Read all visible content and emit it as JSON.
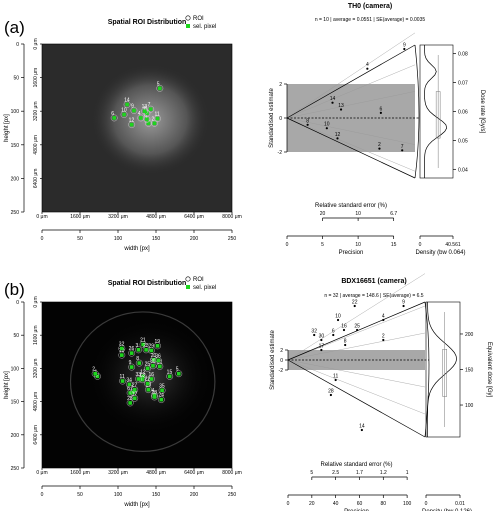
{
  "figure": {
    "panels": [
      {
        "tag": "(a)",
        "map": {
          "title": "Spatial ROI Distribution",
          "legend": [
            "ROI",
            "sel. pixel"
          ],
          "xlabel": "width [px]",
          "ylabel": "height [px]",
          "x_ticks": [
            0,
            50,
            100,
            150,
            200,
            250
          ],
          "y_ticks": [
            0,
            50,
            100,
            150,
            200,
            250
          ],
          "um_x_ticks": [
            "0 μm",
            "1600 μm",
            "3200 μm",
            "4800 μm",
            "6400 μm",
            "8000 μm"
          ],
          "um_y_ticks": [
            "0 μm",
            "1600 μm",
            "3200 μm",
            "4800 μm",
            "6400 μm"
          ],
          "rois": [
            {
              "label": "1",
              "x": 140,
              "y": 118
            },
            {
              "label": "2",
              "x": 148,
              "y": 118
            },
            {
              "label": "3",
              "x": 138,
              "y": 112
            },
            {
              "label": "4",
              "x": 130,
              "y": 110
            },
            {
              "label": "5",
              "x": 155,
              "y": 66
            },
            {
              "label": "6",
              "x": 95,
              "y": 110
            },
            {
              "label": "7",
              "x": 143,
              "y": 97
            },
            {
              "label": "8",
              "x": 138,
              "y": 103
            },
            {
              "label": "9",
              "x": 121,
              "y": 99
            },
            {
              "label": "10",
              "x": 108,
              "y": 105
            },
            {
              "label": "11",
              "x": 152,
              "y": 111
            },
            {
              "label": "12",
              "x": 118,
              "y": 120
            },
            {
              "label": "13",
              "x": 135,
              "y": 100
            },
            {
              "label": "14",
              "x": 112,
              "y": 90
            }
          ]
        },
        "radial": {
          "title": "TH0 (camera)",
          "stats": "n = 10 | average = 0.0551 | SE(average) = 0.0035",
          "ylabel": "Standardised estimate",
          "y_ticks": [
            -2,
            0,
            2
          ],
          "precision_label": "Precision",
          "precision_ticks": [
            0,
            5,
            10,
            15
          ],
          "rse_label": "Relative standard error (%)",
          "rse_ticks": [
            "20",
            "10",
            "6.7"
          ],
          "rse_positions": [
            5,
            10,
            15
          ],
          "dose_label": "Dose rate [Gy/s]",
          "dose_ticks": [
            0.04,
            0.05,
            0.06,
            0.07,
            0.08
          ],
          "dose_range": [
            0.037,
            0.083
          ],
          "density_label": "Density (bw 0.064)",
          "density_ticks": [
            "0",
            "40.561"
          ],
          "precision_max": 18,
          "points": [
            {
              "label": "9",
              "p": 16.5,
              "z": 6.8
            },
            {
              "label": "4",
              "p": 11.3,
              "z": 2.9
            },
            {
              "label": "14",
              "p": 6.4,
              "z": 0.9
            },
            {
              "label": "13",
              "p": 7.6,
              "z": 0.5
            },
            {
              "label": "6",
              "p": 13.2,
              "z": 0.3
            },
            {
              "label": "8",
              "p": 2.9,
              "z": -0.4
            },
            {
              "label": "10",
              "p": 5.6,
              "z": -0.6
            },
            {
              "label": "12",
              "p": 7.1,
              "z": -1.2
            },
            {
              "label": "2",
              "p": 13.0,
              "z": -1.8
            },
            {
              "label": "7",
              "p": 16.2,
              "z": -1.9
            }
          ]
        }
      },
      {
        "tag": "(b)",
        "map": {
          "title": "Spatial ROI Distribution",
          "legend": [
            "ROI",
            "sel. pixel"
          ],
          "xlabel": "width [px]",
          "ylabel": "height [px]",
          "x_ticks": [
            0,
            50,
            100,
            150,
            200,
            250
          ],
          "y_ticks": [
            0,
            50,
            100,
            150,
            200,
            250
          ],
          "um_x_ticks": [
            "0 μm",
            "1600 μm",
            "3200 μm",
            "4800 μm",
            "6400 μm",
            "8000 μm"
          ],
          "um_y_ticks": [
            "0 μm",
            "1600 μm",
            "3200 μm",
            "4800 μm",
            "6400 μm"
          ],
          "rois": [
            {
              "label": "1",
              "x": 73,
              "y": 112
            },
            {
              "label": "2",
              "x": 70,
              "y": 108
            },
            {
              "label": "3",
              "x": 127,
              "y": 72
            },
            {
              "label": "4",
              "x": 148,
              "y": 140
            },
            {
              "label": "5",
              "x": 180,
              "y": 108
            },
            {
              "label": "6",
              "x": 116,
              "y": 137
            },
            {
              "label": "7",
              "x": 120,
              "y": 136
            },
            {
              "label": "8",
              "x": 128,
              "y": 92
            },
            {
              "label": "9",
              "x": 118,
              "y": 98
            },
            {
              "label": "10",
              "x": 105,
              "y": 80
            },
            {
              "label": "11",
              "x": 106,
              "y": 119
            },
            {
              "label": "12",
              "x": 133,
              "y": 112
            },
            {
              "label": "13",
              "x": 132,
              "y": 117
            },
            {
              "label": "14",
              "x": 140,
              "y": 132
            },
            {
              "label": "15",
              "x": 168,
              "y": 112
            },
            {
              "label": "16",
              "x": 144,
              "y": 116
            },
            {
              "label": "17",
              "x": 122,
              "y": 145
            },
            {
              "label": "18",
              "x": 148,
              "y": 143
            },
            {
              "label": "19",
              "x": 152,
              "y": 66
            },
            {
              "label": "20",
              "x": 147,
              "y": 87
            },
            {
              "label": "21",
              "x": 133,
              "y": 64
            },
            {
              "label": "22",
              "x": 139,
              "y": 123
            },
            {
              "label": "23",
              "x": 137,
              "y": 72
            },
            {
              "label": "24",
              "x": 157,
              "y": 147
            },
            {
              "label": "25",
              "x": 139,
              "y": 100
            },
            {
              "label": "26",
              "x": 118,
              "y": 77
            },
            {
              "label": "27",
              "x": 122,
              "y": 132
            },
            {
              "label": "28",
              "x": 116,
              "y": 152
            },
            {
              "label": "29",
              "x": 144,
              "y": 73
            },
            {
              "label": "30",
              "x": 146,
              "y": 96
            },
            {
              "label": "31",
              "x": 155,
              "y": 97
            },
            {
              "label": "32",
              "x": 105,
              "y": 70
            },
            {
              "label": "33",
              "x": 127,
              "y": 116
            },
            {
              "label": "34",
              "x": 115,
              "y": 124
            },
            {
              "label": "35",
              "x": 158,
              "y": 133
            },
            {
              "label": "36",
              "x": 153,
              "y": 88
            }
          ]
        },
        "radial": {
          "title": "BDX16651 (camera)",
          "stats": "n = 32 | average = 148.6 | SE(average) = 6.5",
          "ylabel": "Standardised estimate",
          "y_ticks": [
            -2,
            0,
            2
          ],
          "precision_label": "Precision",
          "precision_ticks": [
            0,
            20,
            40,
            60,
            80,
            100
          ],
          "rse_label": "Relative standard error (%)",
          "rse_ticks": [
            "5",
            "2.5",
            "1.7",
            "1.2",
            "1"
          ],
          "rse_positions": [
            20,
            40,
            60,
            80,
            100
          ],
          "dose_label": "Equivalent dose [Gy]",
          "dose_ticks": [
            100,
            150,
            200
          ],
          "dose_range": [
            55,
            245
          ],
          "density_label": "Density (bw 0.126)",
          "density_ticks": [
            "0",
            "0.01"
          ],
          "precision_max": 115,
          "points": [
            {
              "label": "9",
              "p": 97,
              "z": 18
            },
            {
              "label": "4",
              "p": 80,
              "z": 8
            },
            {
              "label": "2",
              "p": 80,
              "z": 4
            },
            {
              "label": "22",
              "p": 56,
              "z": 11
            },
            {
              "label": "25",
              "p": 58,
              "z": 6
            },
            {
              "label": "16",
              "p": 47,
              "z": 6
            },
            {
              "label": "10",
              "p": 42,
              "z": 8
            },
            {
              "label": "6",
              "p": 38,
              "z": 5
            },
            {
              "label": "8",
              "p": 48,
              "z": 3
            },
            {
              "label": "30",
              "p": 28,
              "z": 4
            },
            {
              "label": "32",
              "p": 22,
              "z": 5
            },
            {
              "label": "17",
              "p": 28,
              "z": 2
            },
            {
              "label": "14",
              "p": 62,
              "z": -14
            },
            {
              "label": "11",
              "p": 40,
              "z": -4
            },
            {
              "label": "28",
              "p": 36,
              "z": -7
            }
          ]
        }
      }
    ]
  }
}
